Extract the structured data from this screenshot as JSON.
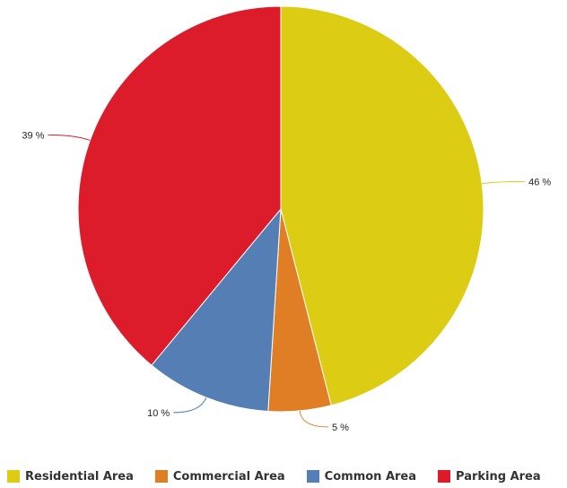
{
  "chart_data": {
    "type": "pie",
    "categories": [
      "Residential Area",
      "Commercial Area",
      "Common Area",
      "Parking Area"
    ],
    "values": [
      46,
      5,
      10,
      39
    ],
    "labels": [
      "46 %",
      "5 %",
      "10 %",
      "39 %"
    ],
    "colors": [
      "#DCCC14",
      "#E07E26",
      "#557EB5",
      "#DC1C2B"
    ],
    "legend_position": "bottom"
  }
}
